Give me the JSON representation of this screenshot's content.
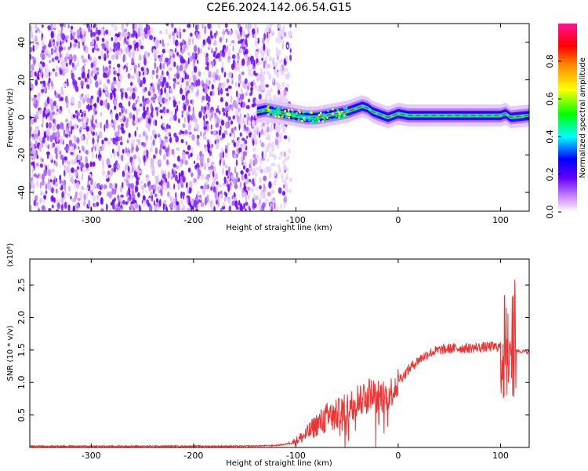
{
  "figure_title": "C2E6.2024.142.06.54.G15",
  "chart_data": [
    {
      "type": "heatmap",
      "xlabel": "Height of straight line (km)",
      "ylabel": "Frequency (Hz)",
      "xlim": [
        -360,
        128
      ],
      "ylim": [
        -50,
        50
      ],
      "x_ticks": [
        "-300",
        "-200",
        "-100",
        "0",
        "100"
      ],
      "y_ticks": [
        "-40",
        "-20",
        "0",
        "20",
        "40"
      ],
      "colorbar": {
        "label": "Normalized spectral amplitude",
        "range": [
          0,
          1
        ],
        "ticks": [
          "0.0",
          "0.2",
          "0.4",
          "0.6",
          "0.8"
        ],
        "colors": [
          "#ffffff",
          "#cc88ff",
          "#6600ff",
          "#0000ff",
          "#00ffff",
          "#00ff00",
          "#ffff00",
          "#ff8800",
          "#ff0000",
          "#ff1493"
        ]
      },
      "noise_region_x": [
        -360,
        -120
      ],
      "trace": {
        "x": [
          -138,
          -130,
          -120,
          -110,
          -100,
          -90,
          -80,
          -70,
          -60,
          -50,
          -40,
          -35,
          -30,
          -25,
          -20,
          -15,
          -10,
          -5,
          0,
          10,
          20,
          40,
          60,
          80,
          100,
          105,
          110,
          128
        ],
        "frequency": [
          3,
          4,
          3,
          2,
          1,
          0,
          0,
          1,
          2,
          3,
          5,
          6,
          5,
          3,
          2,
          1,
          0,
          1,
          2,
          1,
          1,
          1,
          1,
          1,
          1,
          2,
          0,
          1
        ]
      }
    },
    {
      "type": "line",
      "xlabel": "Height of straight line (km)",
      "ylabel": "SNR (10 * v/v)",
      "y_scale_label": "(x10⁴)",
      "xlim": [
        -360,
        128
      ],
      "ylim": [
        0,
        2.9
      ],
      "x_ticks": [
        "-300",
        "-200",
        "-100",
        "0",
        "100"
      ],
      "y_ticks": [
        "0.5",
        "1.0",
        "1.5",
        "2.0",
        "2.5"
      ],
      "line_color": "#ee3333",
      "series": [
        {
          "x": [
            -360,
            -300,
            -250,
            -200,
            -150,
            -120,
            -110,
            -100,
            -90,
            -80,
            -70,
            -60,
            -50,
            -40,
            -30,
            -20,
            -10,
            -5,
            0,
            5,
            10,
            20,
            30,
            40,
            50,
            60,
            70,
            80,
            90,
            95,
            100,
            105,
            108,
            110,
            112,
            115,
            120,
            128
          ],
          "values": [
            0.02,
            0.02,
            0.02,
            0.02,
            0.02,
            0.03,
            0.05,
            0.1,
            0.2,
            0.35,
            0.45,
            0.5,
            0.6,
            0.75,
            0.85,
            0.8,
            0.8,
            0.9,
            1.05,
            1.1,
            1.2,
            1.35,
            1.45,
            1.5,
            1.52,
            1.53,
            1.53,
            1.54,
            1.55,
            1.55,
            1.55,
            1.52,
            1.6,
            1.7,
            1.55,
            1.5,
            1.48,
            1.47
          ]
        }
      ]
    }
  ]
}
